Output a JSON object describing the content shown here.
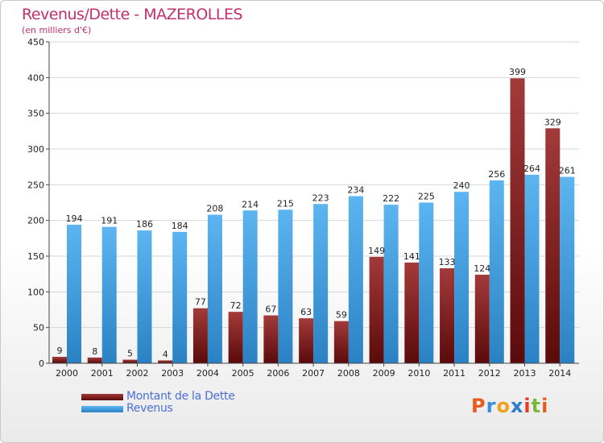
{
  "header": {
    "title": "Revenus/Dette - MAZEROLLES",
    "subtitle": "(en milliers d'€)"
  },
  "logo": {
    "text": "Proxiti",
    "colors": [
      "#e85a1e",
      "#3a8fd6",
      "#f0a21e",
      "#2d7cc9",
      "#e63b2e",
      "#7ab83b",
      "#e85a1e"
    ]
  },
  "colors": {
    "dette": "#7a1a1a",
    "revenus": "#3a9de0"
  },
  "chart_data": {
    "type": "bar",
    "title": "Revenus/Dette - MAZEROLLES",
    "subtitle": "(en milliers d'€)",
    "categories": [
      "2000",
      "2001",
      "2002",
      "2003",
      "2004",
      "2005",
      "2006",
      "2007",
      "2008",
      "2009",
      "2010",
      "2011",
      "2012",
      "2013",
      "2014"
    ],
    "series": [
      {
        "name": "Montant de la Dette",
        "values": [
          9,
          8,
          5,
          4,
          77,
          72,
          67,
          63,
          59,
          149,
          141,
          133,
          124,
          399,
          329
        ]
      },
      {
        "name": "Revenus",
        "values": [
          194,
          191,
          186,
          184,
          208,
          214,
          215,
          223,
          234,
          222,
          225,
          240,
          256,
          264,
          261
        ]
      }
    ],
    "ylim": [
      0,
      450
    ],
    "yticks": [
      0,
      50,
      100,
      150,
      200,
      250,
      300,
      350,
      400,
      450
    ],
    "grid": true,
    "legend": "bottom-left"
  }
}
